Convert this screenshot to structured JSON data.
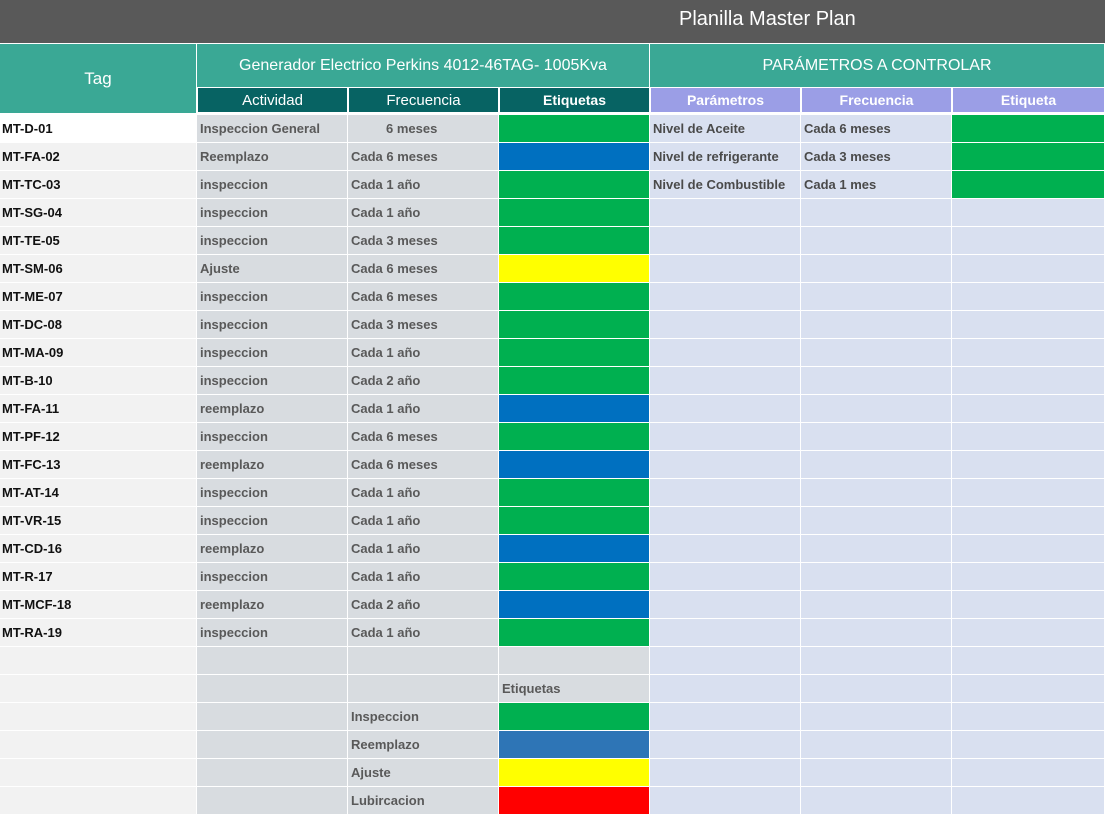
{
  "title": "Planilla Master Plan",
  "headers": {
    "tag": "Tag",
    "generator": "Generador Electrico Perkins 4012-46TAG- 1005Kva",
    "parameters": "PARÁMETROS A CONTROLAR",
    "actividad": "Actividad",
    "frecuencia": "Frecuencia",
    "etiquetas": "Etiquetas",
    "parametros": "Parámetros",
    "frecuencia2": "Frecuencia",
    "etiqueta": "Etiqueta"
  },
  "colors": {
    "green": "#00b050",
    "blue": "#0070c0",
    "yellow": "#ffff00",
    "red": "#ff0000",
    "legend_blue": "#2e75b6"
  },
  "rows": [
    {
      "tag": "MT-D-01",
      "actividad": "Inspeccion General",
      "frecuencia": "6 meses",
      "etiqueta": "green"
    },
    {
      "tag": "MT-FA-02",
      "actividad": "Reemplazo",
      "frecuencia": "Cada 6 meses",
      "etiqueta": "blue"
    },
    {
      "tag": "MT-TC-03",
      "actividad": "inspeccion",
      "frecuencia": "Cada 1 año",
      "etiqueta": "green"
    },
    {
      "tag": "MT-SG-04",
      "actividad": "inspeccion",
      "frecuencia": "Cada 1 año",
      "etiqueta": "green"
    },
    {
      "tag": "MT-TE-05",
      "actividad": "inspeccion",
      "frecuencia": "Cada 3 meses",
      "etiqueta": "green"
    },
    {
      "tag": "MT-SM-06",
      "actividad": "Ajuste",
      "frecuencia": "Cada 6 meses",
      "etiqueta": "yellow"
    },
    {
      "tag": "MT-ME-07",
      "actividad": "inspeccion",
      "frecuencia": "Cada 6 meses",
      "etiqueta": "green"
    },
    {
      "tag": "MT-DC-08",
      "actividad": "inspeccion",
      "frecuencia": "Cada 3 meses",
      "etiqueta": "green"
    },
    {
      "tag": "MT-MA-09",
      "actividad": "inspeccion",
      "frecuencia": "Cada 1 año",
      "etiqueta": "green"
    },
    {
      "tag": "MT-B-10",
      "actividad": "inspeccion",
      "frecuencia": "Cada 2 año",
      "etiqueta": "green"
    },
    {
      "tag": "MT-FA-11",
      "actividad": "reemplazo",
      "frecuencia": "Cada 1 año",
      "etiqueta": "blue"
    },
    {
      "tag": "MT-PF-12",
      "actividad": "inspeccion",
      "frecuencia": "Cada 6 meses",
      "etiqueta": "green"
    },
    {
      "tag": "MT-FC-13",
      "actividad": "reemplazo",
      "frecuencia": "Cada 6 meses",
      "etiqueta": "blue"
    },
    {
      "tag": "MT-AT-14",
      "actividad": "inspeccion",
      "frecuencia": "Cada 1 año",
      "etiqueta": "green"
    },
    {
      "tag": "MT-VR-15",
      "actividad": "inspeccion",
      "frecuencia": "Cada 1 año",
      "etiqueta": "green"
    },
    {
      "tag": "MT-CD-16",
      "actividad": "reemplazo",
      "frecuencia": "Cada 1 año",
      "etiqueta": "blue"
    },
    {
      "tag": "MT-R-17",
      "actividad": "inspeccion",
      "frecuencia": "Cada 1 año",
      "etiqueta": "green"
    },
    {
      "tag": "MT-MCF-18",
      "actividad": "reemplazo",
      "frecuencia": "Cada 2 año",
      "etiqueta": "blue"
    },
    {
      "tag": "MT-RA-19",
      "actividad": "inspeccion",
      "frecuencia": "Cada 1 año",
      "etiqueta": "green"
    }
  ],
  "parameters": [
    {
      "parametro": "Nivel de Aceite",
      "frecuencia": "Cada  6 meses",
      "etiqueta": "green"
    },
    {
      "parametro": "Nivel de refrigerante",
      "frecuencia": "Cada 3 meses",
      "etiqueta": "green"
    },
    {
      "parametro": "Nivel de Combustible",
      "frecuencia": "Cada  1  mes",
      "etiqueta": "green"
    }
  ],
  "legend": {
    "title": "Etiquetas",
    "items": [
      {
        "label": "Inspeccion",
        "color": "green"
      },
      {
        "label": "Reemplazo",
        "color": "legend_blue"
      },
      {
        "label": "Ajuste",
        "color": "yellow"
      },
      {
        "label": "Lubircacion",
        "color": "red"
      }
    ]
  }
}
